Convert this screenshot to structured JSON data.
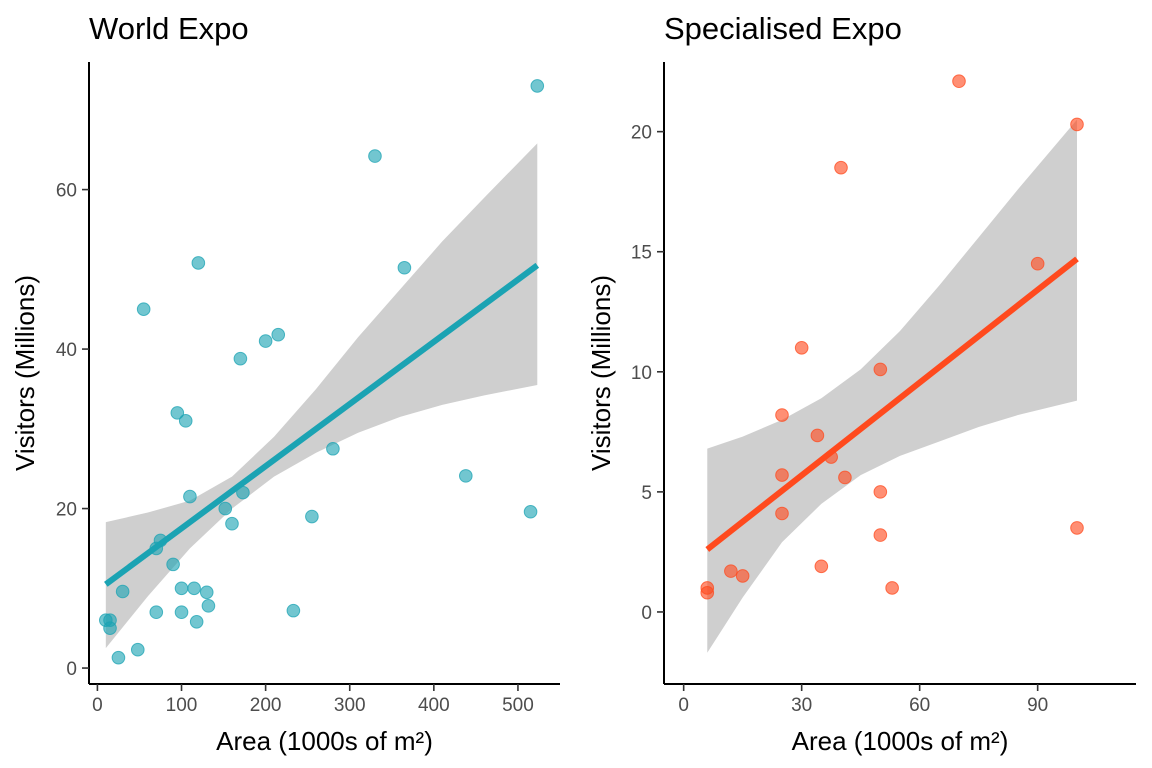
{
  "chart_data": [
    {
      "type": "scatter",
      "title": "World Expo",
      "xlabel": "Area (1000s of m²)",
      "ylabel": "Visitors (Millions)",
      "xlim": [
        -10,
        550
      ],
      "ylim": [
        -2,
        76
      ],
      "xticks": [
        0,
        100,
        200,
        300,
        400,
        500
      ],
      "yticks": [
        0,
        20,
        40,
        60
      ],
      "grid": false,
      "color": "#1BA3B3",
      "band_color": "#CFCFCF",
      "points": [
        {
          "x": 10,
          "y": 6.0
        },
        {
          "x": 15,
          "y": 6.0
        },
        {
          "x": 15,
          "y": 5.0
        },
        {
          "x": 25,
          "y": 1.3
        },
        {
          "x": 30,
          "y": 9.6
        },
        {
          "x": 48,
          "y": 2.3
        },
        {
          "x": 55,
          "y": 45.0
        },
        {
          "x": 70,
          "y": 15.0
        },
        {
          "x": 70,
          "y": 7.0
        },
        {
          "x": 75,
          "y": 16.0
        },
        {
          "x": 90,
          "y": 13.0
        },
        {
          "x": 95,
          "y": 32.0
        },
        {
          "x": 100,
          "y": 10.0
        },
        {
          "x": 100,
          "y": 7.0
        },
        {
          "x": 105,
          "y": 31.0
        },
        {
          "x": 110,
          "y": 21.5
        },
        {
          "x": 115,
          "y": 10.0
        },
        {
          "x": 118,
          "y": 5.8
        },
        {
          "x": 120,
          "y": 50.8
        },
        {
          "x": 130,
          "y": 9.5
        },
        {
          "x": 132,
          "y": 7.8
        },
        {
          "x": 152,
          "y": 20.0
        },
        {
          "x": 160,
          "y": 18.1
        },
        {
          "x": 170,
          "y": 38.8
        },
        {
          "x": 173,
          "y": 22.0
        },
        {
          "x": 200,
          "y": 41.0
        },
        {
          "x": 215,
          "y": 41.8
        },
        {
          "x": 233,
          "y": 7.2
        },
        {
          "x": 255,
          "y": 19.0
        },
        {
          "x": 280,
          "y": 27.5
        },
        {
          "x": 330,
          "y": 64.2
        },
        {
          "x": 365,
          "y": 50.2
        },
        {
          "x": 438,
          "y": 24.1
        },
        {
          "x": 515,
          "y": 19.6
        },
        {
          "x": 523,
          "y": 73.0
        }
      ],
      "fit": {
        "x": [
          10,
          523
        ],
        "y": [
          10.5,
          50.5
        ]
      },
      "band": {
        "x": [
          10,
          60,
          110,
          160,
          210,
          260,
          310,
          360,
          410,
          460,
          523
        ],
        "lower": [
          2.5,
          9.0,
          15.0,
          20.0,
          24.0,
          27.0,
          29.5,
          31.5,
          33.0,
          34.2,
          35.5
        ],
        "upper": [
          18.3,
          19.5,
          21.0,
          24.0,
          29.0,
          35.0,
          41.5,
          47.5,
          53.5,
          59.0,
          65.8
        ]
      }
    },
    {
      "type": "scatter",
      "title": "Specialised Expo",
      "xlabel": "Area (1000s of m²)",
      "ylabel": "Visitors (Millions)",
      "xlim": [
        -5,
        115
      ],
      "ylim": [
        -3,
        22.9
      ],
      "xticks": [
        0,
        30,
        60,
        90
      ],
      "yticks": [
        0,
        5,
        10,
        15,
        20
      ],
      "grid": false,
      "color": "#FF4A1E",
      "band_color": "#CFCFCF",
      "points": [
        {
          "x": 6,
          "y": 1.0
        },
        {
          "x": 6,
          "y": 0.8
        },
        {
          "x": 12,
          "y": 1.7
        },
        {
          "x": 15,
          "y": 1.5
        },
        {
          "x": 25,
          "y": 8.2
        },
        {
          "x": 25,
          "y": 5.7
        },
        {
          "x": 25,
          "y": 4.1
        },
        {
          "x": 30,
          "y": 11.0
        },
        {
          "x": 34,
          "y": 7.35
        },
        {
          "x": 35,
          "y": 1.9
        },
        {
          "x": 37.5,
          "y": 6.45
        },
        {
          "x": 40,
          "y": 18.5
        },
        {
          "x": 41,
          "y": 5.6
        },
        {
          "x": 50,
          "y": 10.1
        },
        {
          "x": 50,
          "y": 5.0
        },
        {
          "x": 50,
          "y": 3.2
        },
        {
          "x": 53,
          "y": 1.0
        },
        {
          "x": 70,
          "y": 22.1
        },
        {
          "x": 90,
          "y": 14.5
        },
        {
          "x": 100,
          "y": 20.3
        },
        {
          "x": 100,
          "y": 3.5
        }
      ],
      "fit": {
        "x": [
          6,
          100
        ],
        "y": [
          2.6,
          14.7
        ]
      },
      "band": {
        "x": [
          6,
          15,
          25,
          35,
          45,
          55,
          65,
          75,
          85,
          100
        ],
        "lower": [
          -1.7,
          0.6,
          2.9,
          4.5,
          5.7,
          6.5,
          7.1,
          7.7,
          8.2,
          8.8
        ],
        "upper": [
          6.8,
          7.3,
          8.0,
          8.9,
          10.1,
          11.7,
          13.6,
          15.6,
          17.6,
          20.5
        ]
      }
    }
  ]
}
